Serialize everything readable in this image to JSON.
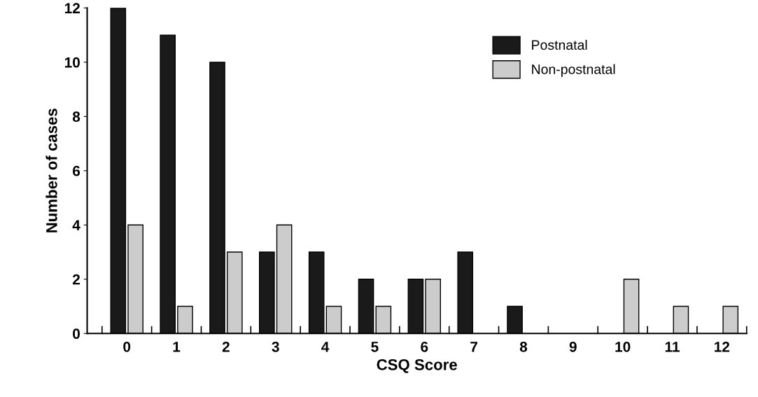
{
  "chart_data": {
    "type": "bar",
    "xlabel": "CSQ Score",
    "ylabel": "Number of cases",
    "categories": [
      "0",
      "1",
      "2",
      "3",
      "4",
      "5",
      "6",
      "7",
      "8",
      "9",
      "10",
      "11",
      "12"
    ],
    "series": [
      {
        "name": "Postnatal",
        "color": "#1a1a1a",
        "values": [
          12,
          11,
          10,
          3,
          3,
          2,
          2,
          3,
          1,
          0,
          0,
          0,
          0
        ]
      },
      {
        "name": "Non-postnatal",
        "color": "#cccccc",
        "values": [
          4,
          1,
          3,
          4,
          1,
          1,
          2,
          0,
          0,
          0,
          2,
          1,
          1
        ]
      }
    ],
    "ylim": [
      0,
      12
    ],
    "yticks": [
      0,
      2,
      4,
      6,
      8,
      10,
      12
    ],
    "grid": false,
    "legend": "top right"
  }
}
